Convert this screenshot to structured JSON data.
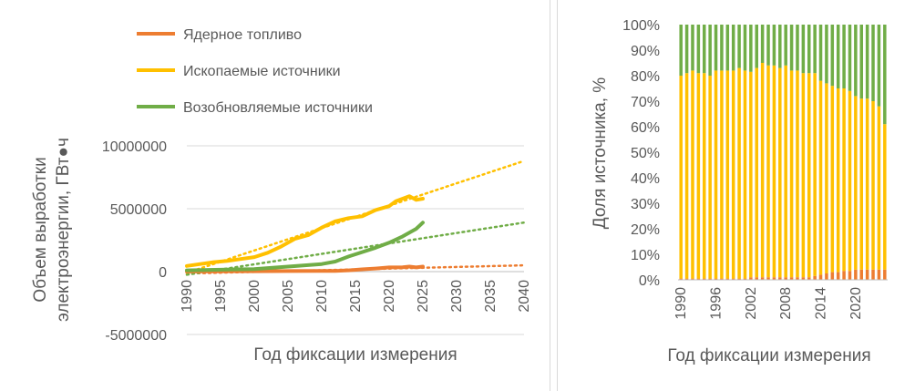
{
  "chart_data": [
    {
      "type": "line",
      "title": "",
      "xlabel": "Год фиксации измерения",
      "ylabel": "Объем выработки электроэнергии, ГВт●ч",
      "ylabel_lines": [
        "Объем выработки",
        "электроэнергии, ГВт●ч"
      ],
      "xlim": [
        1990,
        2040
      ],
      "ylim": [
        -5000000,
        10000000
      ],
      "xticks": [
        1990,
        1995,
        2000,
        2005,
        2010,
        2015,
        2020,
        2025,
        2030,
        2035,
        2040
      ],
      "yticks": [
        -5000000,
        0,
        5000000,
        10000000
      ],
      "ytick_labels": [
        "-5000000",
        "0",
        "5000000",
        "10000000"
      ],
      "grid": true,
      "legend_position": "top",
      "series": [
        {
          "name": "Ядерное топливо",
          "color": "#ED7D31",
          "x": [
            1990,
            1995,
            2000,
            2005,
            2010,
            2012,
            2014,
            2016,
            2018,
            2020,
            2022,
            2023,
            2024,
            2025
          ],
          "y": [
            10000,
            20000,
            30000,
            40000,
            50000,
            60000,
            100000,
            180000,
            250000,
            330000,
            340000,
            400000,
            330000,
            400000
          ],
          "trend": {
            "x": [
              1990,
              2040
            ],
            "y": [
              -150000,
              500000
            ]
          }
        },
        {
          "name": "Ископаемые источники",
          "color": "#FFC000",
          "x": [
            1990,
            1992,
            1994,
            1996,
            1998,
            2000,
            2002,
            2004,
            2006,
            2008,
            2010,
            2012,
            2014,
            2016,
            2018,
            2020,
            2021,
            2022,
            2023,
            2024,
            2025
          ],
          "y": [
            450000,
            600000,
            750000,
            850000,
            1000000,
            1150000,
            1500000,
            2000000,
            2600000,
            2900000,
            3500000,
            4000000,
            4250000,
            4400000,
            4900000,
            5200000,
            5600000,
            5800000,
            6000000,
            5700000,
            5800000
          ],
          "trend": {
            "x": [
              1990,
              2040
            ],
            "y": [
              -100000,
              8800000
            ]
          }
        },
        {
          "name": "Возобновляемые источники",
          "color": "#70AD47",
          "x": [
            1990,
            1995,
            2000,
            2005,
            2010,
            2012,
            2014,
            2016,
            2018,
            2020,
            2022,
            2024,
            2025
          ],
          "y": [
            100000,
            150000,
            200000,
            400000,
            600000,
            800000,
            1200000,
            1550000,
            1900000,
            2300000,
            2800000,
            3400000,
            3900000
          ],
          "trend": {
            "x": [
              1990,
              2040
            ],
            "y": [
              -250000,
              3900000
            ]
          }
        }
      ]
    },
    {
      "type": "bar",
      "stacked": true,
      "percent": true,
      "title": "",
      "xlabel": "Год фиксации измерения",
      "ylabel": "Доля источника, %",
      "ylim": [
        0,
        100
      ],
      "yticks": [
        0,
        10,
        20,
        30,
        40,
        50,
        60,
        70,
        80,
        90,
        100
      ],
      "ytick_labels": [
        "0%",
        "10%",
        "20%",
        "30%",
        "40%",
        "50%",
        "60%",
        "70%",
        "80%",
        "90%",
        "100%"
      ],
      "xtick_labels": [
        "1990",
        "1996",
        "2002",
        "2008",
        "2014",
        "2020"
      ],
      "categories": [
        1990,
        1991,
        1992,
        1993,
        1994,
        1995,
        1996,
        1997,
        1998,
        1999,
        2000,
        2001,
        2002,
        2003,
        2004,
        2005,
        2006,
        2007,
        2008,
        2009,
        2010,
        2011,
        2012,
        2013,
        2014,
        2015,
        2016,
        2017,
        2018,
        2019,
        2020,
        2021,
        2022,
        2023,
        2024,
        2025
      ],
      "series": [
        {
          "name": "Ядерное топливо",
          "color": "#ED7D31",
          "values": [
            0.5,
            0.5,
            0.5,
            0.5,
            0.5,
            0.5,
            0.5,
            0.5,
            0.5,
            0.5,
            0.5,
            0.5,
            1.0,
            1.0,
            1.0,
            1.0,
            1.0,
            1.0,
            1.0,
            1.0,
            1.0,
            1.0,
            1.0,
            1.5,
            2.0,
            2.5,
            3.0,
            3.0,
            3.5,
            3.5,
            4.0,
            4.0,
            4.0,
            4.0,
            4.0,
            4.0
          ]
        },
        {
          "name": "Ископаемые источники",
          "color": "#FFC000",
          "values": [
            79.5,
            80.5,
            81.5,
            80.5,
            80.5,
            79.5,
            81.5,
            81.5,
            81.5,
            81.5,
            82.5,
            81.5,
            80.5,
            82.0,
            84.0,
            83.0,
            83.0,
            82.0,
            83.0,
            81.0,
            81.0,
            80.0,
            80.0,
            79.5,
            76.0,
            74.5,
            73.0,
            72.0,
            71.5,
            70.5,
            68.0,
            67.0,
            67.0,
            66.0,
            64.0,
            57.0
          ]
        },
        {
          "name": "Возобновляемые источники",
          "color": "#70AD47",
          "values": [
            20.0,
            19.0,
            18.0,
            19.0,
            19.0,
            20.0,
            18.0,
            18.0,
            18.0,
            18.0,
            17.0,
            18.0,
            18.5,
            17.0,
            15.0,
            16.0,
            16.0,
            17.0,
            16.0,
            18.0,
            18.0,
            19.0,
            19.0,
            19.0,
            22.0,
            23.0,
            24.0,
            25.0,
            25.0,
            26.0,
            28.0,
            29.0,
            29.0,
            30.0,
            32.0,
            39.0
          ]
        }
      ]
    }
  ]
}
